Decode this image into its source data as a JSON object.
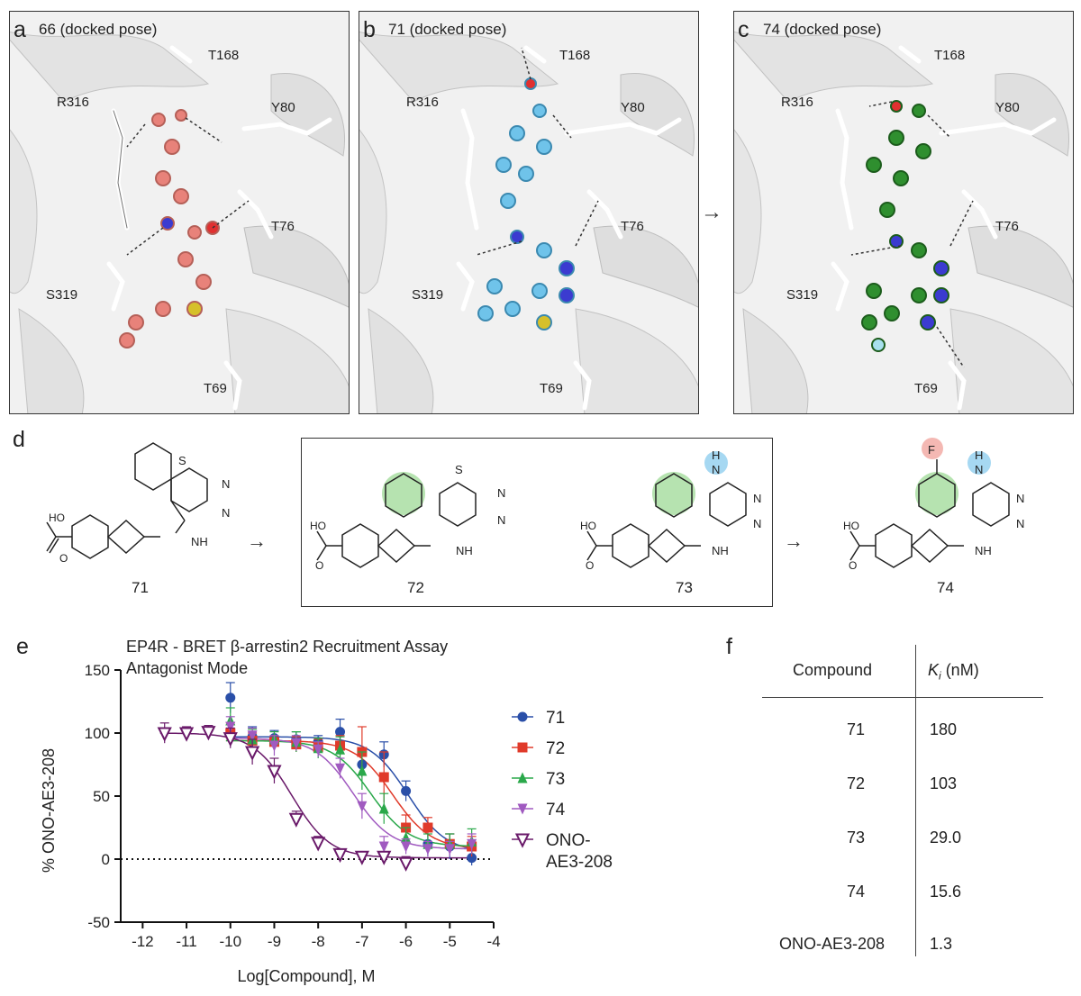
{
  "panels": [
    {
      "letter": "a",
      "title": "66 (docked pose)",
      "ligand_color": "#e8827a",
      "residues": {
        "T168": "T168",
        "R316": "R316",
        "Y80": "Y80",
        "T76": "T76",
        "S319": "S319",
        "T69": "T69"
      }
    },
    {
      "letter": "b",
      "title": "71 (docked pose)",
      "ligand_color": "#6fc3ea",
      "residues": {
        "T168": "T168",
        "R316": "R316",
        "Y80": "Y80",
        "T76": "T76",
        "S319": "S319",
        "T69": "T69"
      }
    },
    {
      "letter": "c",
      "title": "74 (docked pose)",
      "ligand_color": "#2f8f2f",
      "residues": {
        "T168": "T168",
        "R316": "R316",
        "Y80": "Y80",
        "T76": "T76",
        "S319": "S319",
        "T69": "T69"
      }
    }
  ],
  "panel_d": {
    "letter": "d",
    "compounds": [
      "71",
      "72",
      "73",
      "74"
    ],
    "atoms": {
      "S": "S",
      "N": "N",
      "NH": "NH",
      "H": "H",
      "F": "F",
      "HO": "HO",
      "O": "O"
    }
  },
  "panel_e": {
    "letter": "e"
  },
  "panel_f": {
    "letter": "f",
    "headers": {
      "compound": "Compound",
      "ki_symbol": "K",
      "ki_sub": "i",
      "ki_unit": " (nM)"
    },
    "rows": [
      {
        "compound": "71",
        "ki": "180"
      },
      {
        "compound": "72",
        "ki": "103"
      },
      {
        "compound": "73",
        "ki": "29.0"
      },
      {
        "compound": "74",
        "ki": "15.6"
      },
      {
        "compound": "ONO-AE3-208",
        "ki": "1.3"
      }
    ]
  },
  "chart_data": {
    "type": "scatter",
    "title": "EP4R - BRET β-arrestin2 Recruitment Assay",
    "subtitle": "Antagonist Mode",
    "xlabel": "Log[Compound], M",
    "ylabel": "% ONO-AE3-208",
    "xlim": [
      -12.5,
      -4
    ],
    "ylim": [
      -50,
      150
    ],
    "xticks": [
      -12,
      -11,
      -10,
      -9,
      -8,
      -7,
      -6,
      -5,
      -4
    ],
    "yticks": [
      -50,
      0,
      50,
      100,
      150
    ],
    "legend_position": "right",
    "series": [
      {
        "name": "71",
        "color": "#2a4fa8",
        "marker": "circle",
        "x": [
          -10,
          -9.5,
          -9,
          -8.5,
          -8,
          -7.5,
          -7,
          -6.5,
          -6,
          -5.5,
          -5,
          -4.5
        ],
        "y": [
          128,
          97,
          96,
          95,
          93,
          101,
          75,
          83,
          54,
          12,
          10,
          1
        ],
        "err": [
          12,
          8,
          6,
          6,
          5,
          10,
          10,
          10,
          8,
          10,
          10,
          6
        ],
        "fit": {
          "top": 97,
          "bottom": 5,
          "logIC50": -5.95,
          "hill": 1
        }
      },
      {
        "name": "72",
        "color": "#e03a2a",
        "marker": "square",
        "x": [
          -10,
          -9.5,
          -9,
          -8.5,
          -8,
          -7.5,
          -7,
          -6.5,
          -6,
          -5.5,
          -5,
          -4.5
        ],
        "y": [
          100,
          94,
          93,
          91,
          89,
          90,
          85,
          65,
          25,
          25,
          12,
          10
        ],
        "err": [
          8,
          6,
          5,
          6,
          6,
          8,
          20,
          20,
          10,
          8,
          8,
          8
        ],
        "fit": {
          "top": 94,
          "bottom": 8,
          "logIC50": -6.3,
          "hill": 1
        }
      },
      {
        "name": "73",
        "color": "#2aa84a",
        "marker": "triangle-up",
        "x": [
          -10,
          -9.5,
          -9,
          -8.5,
          -8,
          -7.5,
          -7,
          -6.5,
          -6,
          -5.5,
          -5,
          -4.5
        ],
        "y": [
          110,
          95,
          95,
          93,
          88,
          87,
          70,
          40,
          17,
          12,
          12,
          14
        ],
        "err": [
          10,
          8,
          6,
          8,
          8,
          10,
          15,
          12,
          8,
          8,
          8,
          10
        ],
        "fit": {
          "top": 94,
          "bottom": 10,
          "logIC50": -6.8,
          "hill": 1
        }
      },
      {
        "name": "74",
        "color": "#a05ac0",
        "marker": "triangle-down",
        "x": [
          -10,
          -9.5,
          -9,
          -8.5,
          -8,
          -7.5,
          -7,
          -6.5,
          -6,
          -5.5,
          -5,
          -4.5
        ],
        "y": [
          105,
          98,
          90,
          92,
          87,
          72,
          42,
          10,
          10,
          8,
          8,
          12
        ],
        "err": [
          8,
          6,
          8,
          6,
          6,
          8,
          10,
          8,
          6,
          6,
          6,
          8
        ],
        "fit": {
          "top": 96,
          "bottom": 8,
          "logIC50": -7.2,
          "hill": 1
        }
      },
      {
        "name": "ONO-\nAE3-208",
        "color": "#6a1a6a",
        "marker": "triangle-down-open",
        "x": [
          -11.5,
          -11,
          -10.5,
          -10,
          -9.5,
          -9,
          -8.5,
          -8,
          -7.5,
          -7,
          -6.5,
          -6
        ],
        "y": [
          100,
          100,
          101,
          96,
          85,
          70,
          32,
          13,
          4,
          2,
          2,
          -3
        ],
        "err": [
          8,
          5,
          5,
          8,
          10,
          10,
          6,
          5,
          4,
          3,
          3,
          5
        ],
        "fit": {
          "top": 100,
          "bottom": 1,
          "logIC50": -8.6,
          "hill": 1
        }
      }
    ]
  }
}
